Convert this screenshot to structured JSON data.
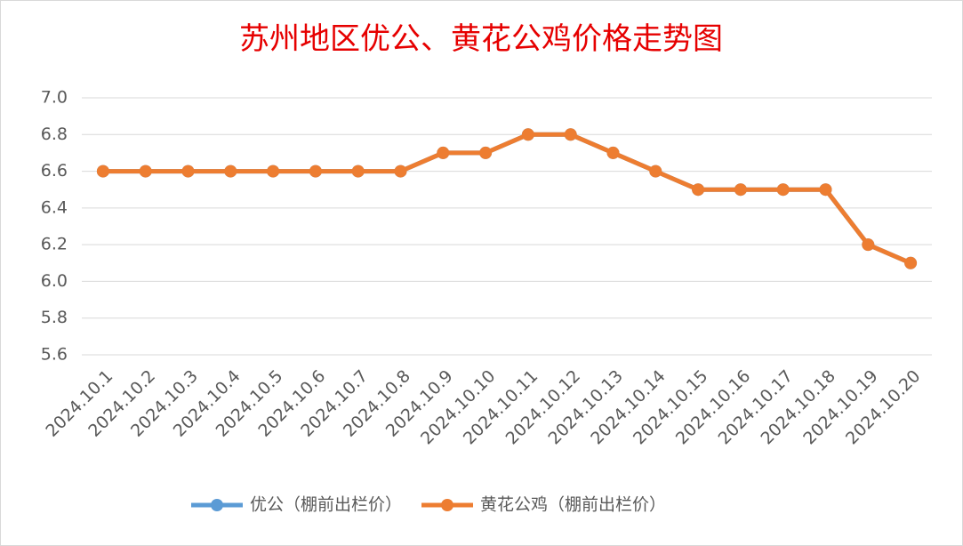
{
  "chart_data": {
    "type": "line",
    "title": "苏州地区优公、黄花公鸡价格走势图",
    "categories": [
      "2024.10.1",
      "2024.10.2",
      "2024.10.3",
      "2024.10.4",
      "2024.10.5",
      "2024.10.6",
      "2024.10.7",
      "2024.10.8",
      "2024.10.9",
      "2024.10.10",
      "2024.10.11",
      "2024.10.12",
      "2024.10.13",
      "2024.10.14",
      "2024.10.15",
      "2024.10.16",
      "2024.10.17",
      "2024.10.18",
      "2024.10.19",
      "2024.10.20"
    ],
    "series": [
      {
        "name": "优公（棚前出栏价）",
        "color": "#5b9bd5",
        "values": [
          6.6,
          6.6,
          6.6,
          6.6,
          6.6,
          6.6,
          6.6,
          6.6,
          6.7,
          6.7,
          6.8,
          6.8,
          6.7,
          6.6,
          6.5,
          6.5,
          6.5,
          6.5,
          6.2,
          6.1
        ]
      },
      {
        "name": "黄花公鸡（棚前出栏价）",
        "color": "#ed7d31",
        "values": [
          6.6,
          6.6,
          6.6,
          6.6,
          6.6,
          6.6,
          6.6,
          6.6,
          6.7,
          6.7,
          6.8,
          6.8,
          6.7,
          6.6,
          6.5,
          6.5,
          6.5,
          6.5,
          6.2,
          6.1
        ]
      }
    ],
    "ylim": [
      5.6,
      7.0
    ],
    "yticks": [
      5.6,
      5.8,
      {
        "value": 6,
        "label": "6.0"
      },
      6.2,
      6.4,
      6.6,
      6.8,
      {
        "value": 7,
        "label": "7.0"
      }
    ],
    "grid": true,
    "legend": "bottom"
  }
}
